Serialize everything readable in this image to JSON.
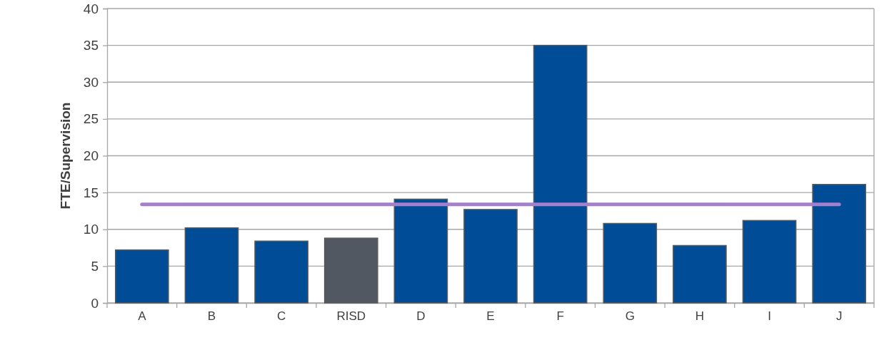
{
  "chart_data": {
    "type": "bar",
    "ylabel": "FTE/Supervision",
    "categories": [
      "A",
      "B",
      "C",
      "RISD",
      "D",
      "E",
      "F",
      "G",
      "H",
      "I",
      "J"
    ],
    "series": [
      {
        "colors": [
          "#004c97",
          "#004c97",
          "#004c97",
          "#525862",
          "#004c97",
          "#004c97",
          "#004c97",
          "#004c97",
          "#004c97",
          "#004c97",
          "#004c97"
        ],
        "values": [
          7.2,
          10.2,
          8.4,
          8.8,
          14.1,
          12.7,
          35,
          10.8,
          7.8,
          11.2,
          16.1
        ]
      },
      {
        "type": "line",
        "color": "#a47fcb",
        "values": [
          13.4,
          13.4,
          13.4,
          13.4,
          13.4,
          13.4,
          13.4,
          13.4,
          13.4,
          13.4,
          13.4
        ]
      }
    ],
    "ylim": [
      0,
      40
    ],
    "yticks": [
      0,
      5,
      10,
      15,
      20,
      25,
      30,
      35,
      40
    ],
    "grid": "y",
    "marker": "none"
  }
}
